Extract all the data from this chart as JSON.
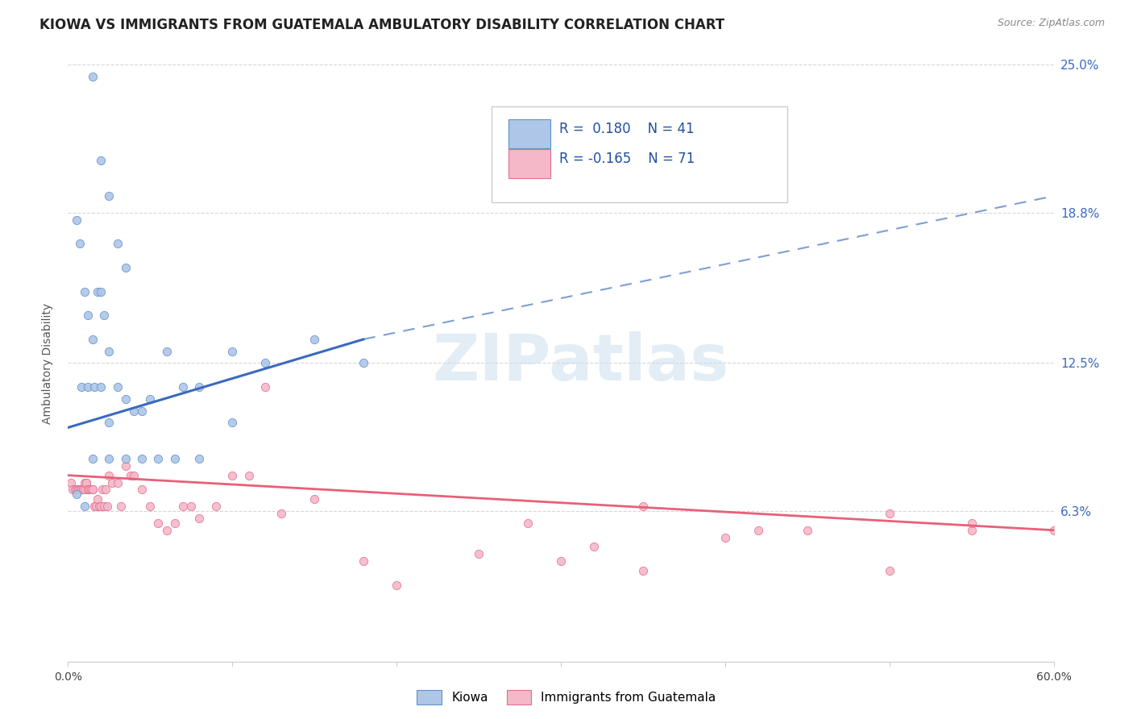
{
  "title": "KIOWA VS IMMIGRANTS FROM GUATEMALA AMBULATORY DISABILITY CORRELATION CHART",
  "source": "Source: ZipAtlas.com",
  "ylabel": "Ambulatory Disability",
  "xlim": [
    0.0,
    0.6
  ],
  "ylim": [
    0.0,
    0.25
  ],
  "kiowa_color": "#aec6e8",
  "kiowa_edge_color": "#6090c8",
  "guatemala_color": "#f5b8c8",
  "guatemala_edge_color": "#e07090",
  "kiowa_line_color": "#3a6abf",
  "guatemala_line_color": "#e8607a",
  "legend_R_color": "#2050a0",
  "legend_N_color": "#2050a0",
  "kiowa_R": "0.180",
  "kiowa_N": "41",
  "guatemala_R": "-0.165",
  "guatemala_N": "71",
  "background_color": "#ffffff",
  "grid_color": "#cccccc",
  "title_fontsize": 12,
  "axis_fontsize": 10,
  "legend_fontsize": 12,
  "kiowa_scatter_x": [
    0.015,
    0.02,
    0.025,
    0.03,
    0.035,
    0.005,
    0.007,
    0.01,
    0.012,
    0.015,
    0.018,
    0.02,
    0.022,
    0.025,
    0.008,
    0.012,
    0.016,
    0.02,
    0.025,
    0.03,
    0.035,
    0.04,
    0.045,
    0.05,
    0.06,
    0.07,
    0.08,
    0.1,
    0.12,
    0.15,
    0.18,
    0.005,
    0.01,
    0.015,
    0.025,
    0.035,
    0.045,
    0.055,
    0.065,
    0.08,
    0.1
  ],
  "kiowa_scatter_y": [
    0.245,
    0.21,
    0.195,
    0.175,
    0.165,
    0.185,
    0.175,
    0.155,
    0.145,
    0.135,
    0.155,
    0.155,
    0.145,
    0.13,
    0.115,
    0.115,
    0.115,
    0.115,
    0.1,
    0.115,
    0.11,
    0.105,
    0.105,
    0.11,
    0.13,
    0.115,
    0.115,
    0.13,
    0.125,
    0.135,
    0.125,
    0.07,
    0.065,
    0.085,
    0.085,
    0.085,
    0.085,
    0.085,
    0.085,
    0.085,
    0.1
  ],
  "guatemala_scatter_x": [
    0.002,
    0.003,
    0.004,
    0.005,
    0.005,
    0.005,
    0.006,
    0.006,
    0.007,
    0.007,
    0.008,
    0.008,
    0.009,
    0.009,
    0.01,
    0.01,
    0.011,
    0.011,
    0.012,
    0.012,
    0.013,
    0.013,
    0.014,
    0.015,
    0.015,
    0.016,
    0.017,
    0.018,
    0.019,
    0.02,
    0.021,
    0.022,
    0.023,
    0.024,
    0.025,
    0.027,
    0.03,
    0.032,
    0.035,
    0.038,
    0.04,
    0.045,
    0.05,
    0.055,
    0.06,
    0.065,
    0.07,
    0.075,
    0.08,
    0.09,
    0.1,
    0.11,
    0.12,
    0.13,
    0.15,
    0.18,
    0.2,
    0.25,
    0.3,
    0.35,
    0.4,
    0.45,
    0.5,
    0.55,
    0.6,
    0.35,
    0.42,
    0.5,
    0.55,
    0.28,
    0.32
  ],
  "guatemala_scatter_y": [
    0.075,
    0.072,
    0.072,
    0.072,
    0.072,
    0.072,
    0.072,
    0.072,
    0.072,
    0.072,
    0.072,
    0.072,
    0.072,
    0.072,
    0.072,
    0.075,
    0.075,
    0.075,
    0.072,
    0.072,
    0.072,
    0.072,
    0.072,
    0.072,
    0.072,
    0.065,
    0.065,
    0.068,
    0.065,
    0.065,
    0.072,
    0.065,
    0.072,
    0.065,
    0.078,
    0.075,
    0.075,
    0.065,
    0.082,
    0.078,
    0.078,
    0.072,
    0.065,
    0.058,
    0.055,
    0.058,
    0.065,
    0.065,
    0.06,
    0.065,
    0.078,
    0.078,
    0.115,
    0.062,
    0.068,
    0.042,
    0.032,
    0.045,
    0.042,
    0.038,
    0.052,
    0.055,
    0.038,
    0.055,
    0.055,
    0.065,
    0.055,
    0.062,
    0.058,
    0.058,
    0.048
  ],
  "kiowa_trend_x0": 0.0,
  "kiowa_trend_x_solid_end": 0.18,
  "kiowa_trend_x_dashed_end": 0.6,
  "kiowa_trend_y_start": 0.098,
  "kiowa_trend_y_solid_end": 0.135,
  "kiowa_trend_y_dashed_end": 0.195,
  "guatemala_trend_x0": 0.0,
  "guatemala_trend_x_end": 0.6,
  "guatemala_trend_y_start": 0.078,
  "guatemala_trend_y_end": 0.055
}
